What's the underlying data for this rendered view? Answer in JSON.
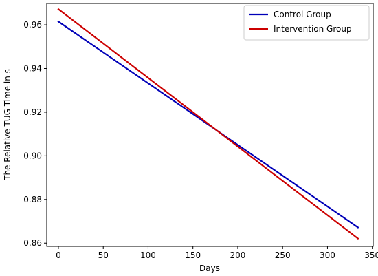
{
  "chart_data": {
    "type": "line",
    "xlabel": "Days",
    "ylabel": "The Relative TUG Time in s",
    "xlim": [
      -13,
      351
    ],
    "ylim": [
      0.8585,
      0.9698
    ],
    "xticks": [
      0,
      50,
      100,
      150,
      200,
      250,
      300,
      350
    ],
    "yticks": [
      0.86,
      0.88,
      0.9,
      0.92,
      0.94,
      0.96
    ],
    "ytick_labels": [
      "0.86",
      "0.88",
      "0.90",
      "0.92",
      "0.94",
      "0.96"
    ],
    "grid": false,
    "legend_position": "top-right",
    "series": [
      {
        "name": "Control Group",
        "color": "#0000b8",
        "x": [
          0,
          334
        ],
        "y": [
          0.9615,
          0.8672
        ]
      },
      {
        "name": "Intervention Group",
        "color": "#cc0000",
        "x": [
          0,
          334
        ],
        "y": [
          0.9672,
          0.8621
        ]
      }
    ]
  }
}
